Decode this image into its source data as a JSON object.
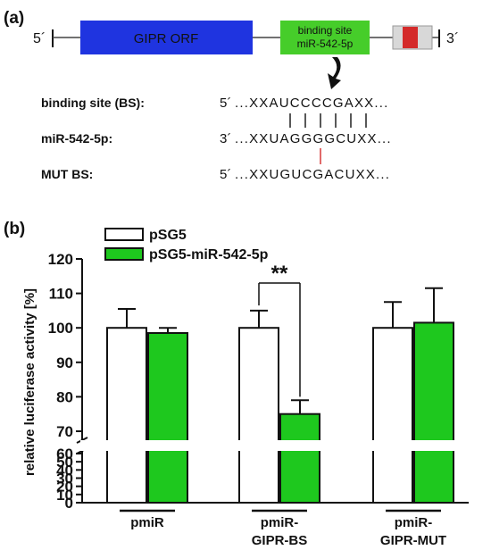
{
  "panel_a": {
    "label": "(a)",
    "five_prime": "5´",
    "three_prime": "3´",
    "orf_label": "GIPR ORF",
    "binding_box": [
      "binding site",
      "miR-542-5p"
    ],
    "colors": {
      "orf": "#1f34e0",
      "binding": "#46cd2a",
      "utr_box": "#d8d8d8",
      "utr_mark": "#d42a2a"
    },
    "alignment": [
      {
        "name": "binding site (BS):",
        "end": "5´",
        "seq": "...XXAUCCCCGAXX..."
      },
      {
        "name": "miR-542-5p:",
        "end": "3´",
        "seq": "...XXUAGGGGCUXX..."
      },
      {
        "name": "MUT BS:",
        "end": "5´",
        "seq": "...XXUGUCGACUXX..."
      }
    ]
  },
  "panel_b": {
    "label": "(b)"
  },
  "chart_data": {
    "type": "bar",
    "categories": [
      "pmiR",
      "pmiR-\nGIPR-BS",
      "pmiR-\nGIPR-MUT"
    ],
    "category_lines": [
      [
        "pmiR"
      ],
      [
        "pmiR-",
        "GIPR-BS"
      ],
      [
        "pmiR-",
        "GIPR-MUT"
      ]
    ],
    "series": [
      {
        "name": "pSG5",
        "values": [
          100,
          100,
          100
        ],
        "errors": [
          5.5,
          5,
          7.5
        ],
        "color": "#ffffff"
      },
      {
        "name": "pSG5-miR-542-5p",
        "values": [
          98.5,
          75,
          101.5
        ],
        "errors": [
          1.5,
          4,
          10
        ],
        "color": "#1ec81e"
      }
    ],
    "ylabel": "relative luciferase activity [%]",
    "yticks_upper": [
      70,
      80,
      90,
      100,
      110,
      120
    ],
    "yticks_lower": [
      0,
      10,
      20,
      30,
      40,
      50,
      60
    ],
    "axis_break": [
      60,
      70
    ],
    "ylim": [
      0,
      120
    ],
    "annotation": {
      "text": "**",
      "between": "pmiR-GIPR-BS"
    },
    "legend_position": "top-left",
    "grid": false
  }
}
